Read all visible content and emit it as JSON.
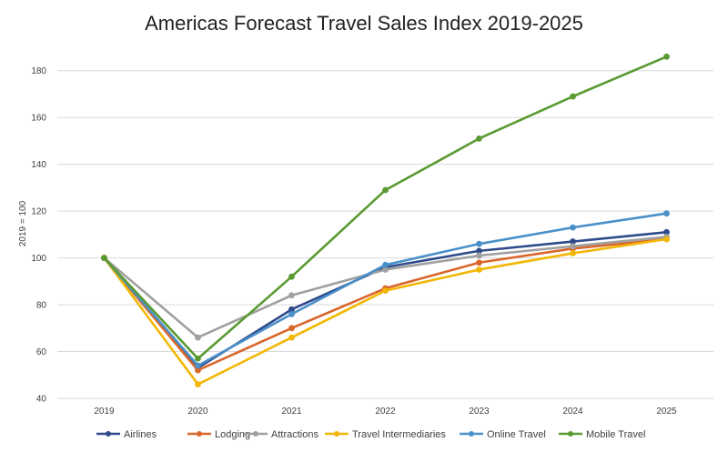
{
  "chart_data": {
    "type": "line",
    "title": "Americas Forecast Travel Sales Index 2019-2025",
    "xlabel": "",
    "ylabel": "2019 = 100",
    "categories": [
      "2019",
      "2020",
      "2021",
      "2022",
      "2023",
      "2024",
      "2025"
    ],
    "ylim": [
      40,
      190
    ],
    "yticks": [
      "40",
      "60",
      "80",
      "100",
      "120",
      "140",
      "160",
      "180"
    ],
    "grid": true,
    "legend_position": "bottom",
    "series": [
      {
        "name": "Airlines",
        "color": "#2F4B8C",
        "values": [
          100,
          53,
          78,
          96,
          103,
          107,
          111
        ]
      },
      {
        "name": "Lodging",
        "color": "#D9662A",
        "values": [
          100,
          52,
          70,
          87,
          98,
          104,
          108
        ]
      },
      {
        "name": "Attractions",
        "color": "#A0A0A0",
        "values": [
          100,
          66,
          84,
          95,
          101,
          105,
          109
        ]
      },
      {
        "name": "Travel Intermediaries",
        "color": "#F2B705",
        "values": [
          100,
          46,
          66,
          86,
          95,
          102,
          108
        ]
      },
      {
        "name": "Online Travel",
        "color": "#4A90C8",
        "values": [
          100,
          54,
          76,
          97,
          106,
          113,
          119
        ]
      },
      {
        "name": "Mobile Travel",
        "color": "#5A9A32",
        "values": [
          100,
          57,
          92,
          129,
          151,
          169,
          186
        ]
      }
    ]
  }
}
